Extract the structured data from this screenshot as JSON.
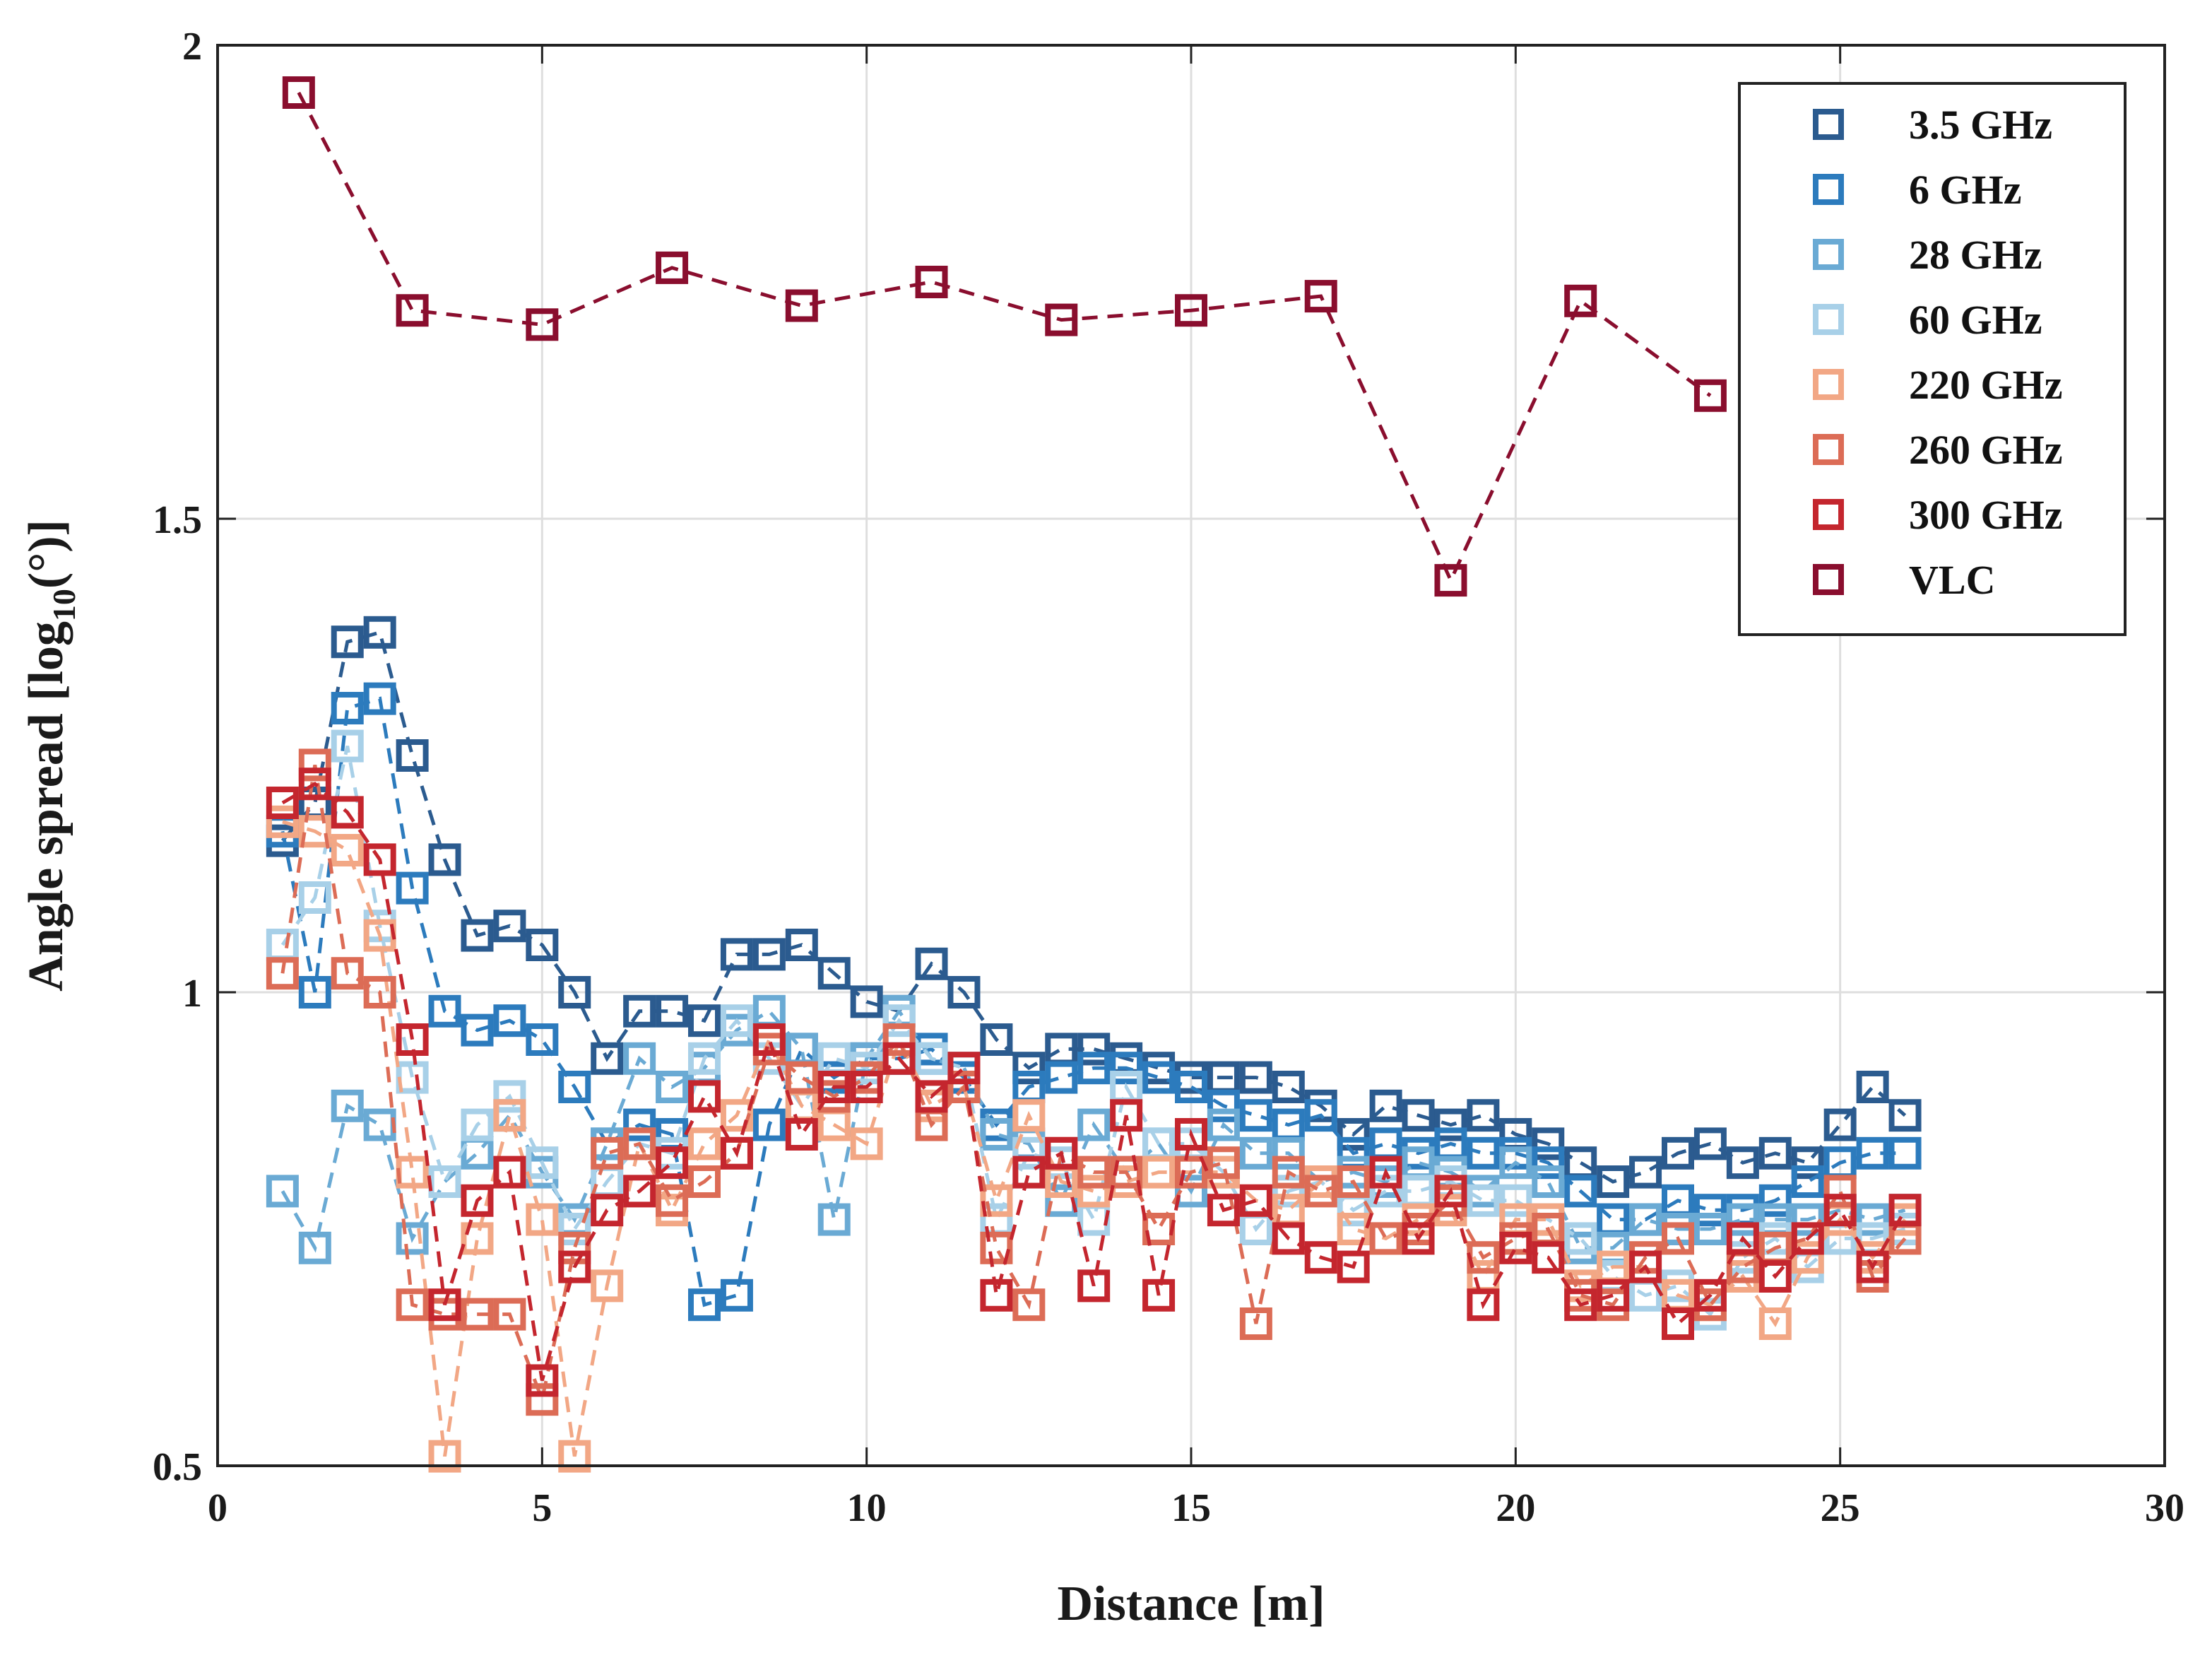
{
  "chart_data": {
    "type": "line",
    "title": "",
    "xlabel": "Distance [m]",
    "ylabel_main": "Angle spread [log",
    "ylabel_sub": "10",
    "ylabel_tail": "(°)]",
    "xlim": [
      0,
      30
    ],
    "ylim": [
      0.5,
      2
    ],
    "xticks": [
      0,
      5,
      10,
      15,
      20,
      25,
      30
    ],
    "xtick_labels": [
      "0",
      "5",
      "10",
      "15",
      "20",
      "25",
      "30"
    ],
    "yticks": [
      0.5,
      1,
      1.5,
      2
    ],
    "ytick_labels": [
      "0.5",
      "1",
      "1.5",
      "2"
    ],
    "grid": true,
    "legend_position": "top-right",
    "marker": "square",
    "line_style": "dashed",
    "series": [
      {
        "name": "3.5 GHz",
        "color": "#2b5b8f",
        "x": [
          1,
          1.5,
          2,
          2.5,
          3,
          3.5,
          4,
          4.5,
          5,
          5.5,
          6,
          6.5,
          7,
          7.5,
          8,
          8.5,
          9,
          9.5,
          10,
          10.5,
          11,
          11.5,
          12,
          12.5,
          13,
          13.5,
          14,
          14.5,
          15,
          15.5,
          16,
          16.5,
          17,
          17.5,
          18,
          18.5,
          19,
          19.5,
          20,
          20.5,
          21,
          21.5,
          22,
          22.5,
          23,
          23.5,
          24,
          24.5,
          25,
          25.5,
          26
        ],
        "y": [
          1.16,
          1.2,
          1.37,
          1.38,
          1.25,
          1.14,
          1.06,
          1.07,
          1.05,
          1.0,
          0.93,
          0.98,
          0.98,
          0.97,
          1.04,
          1.04,
          1.05,
          1.02,
          0.99,
          0.98,
          1.03,
          1.0,
          0.95,
          0.92,
          0.94,
          0.94,
          0.93,
          0.92,
          0.91,
          0.91,
          0.91,
          0.9,
          0.88,
          0.85,
          0.88,
          0.87,
          0.86,
          0.87,
          0.85,
          0.84,
          0.82,
          0.8,
          0.81,
          0.83,
          0.84,
          0.82,
          0.83,
          0.82,
          0.86,
          0.9,
          0.87
        ]
      },
      {
        "name": "6 GHz",
        "color": "#2c7bbd",
        "x": [
          1,
          1.5,
          2,
          2.5,
          3,
          3.5,
          4,
          4.5,
          5,
          5.5,
          6,
          6.5,
          7,
          7.5,
          8,
          8.5,
          9,
          9.5,
          10,
          10.5,
          11,
          11.5,
          12,
          12.5,
          13,
          13.5,
          14,
          14.5,
          15,
          15.5,
          16,
          16.5,
          17,
          17.5,
          18,
          18.5,
          19,
          19.5,
          20,
          20.5,
          21,
          21.5,
          22,
          22.5,
          23,
          23.5,
          24,
          24.5,
          25,
          25.5,
          26
        ],
        "y": [
          1.17,
          1.0,
          1.3,
          1.31,
          1.11,
          0.98,
          0.96,
          0.97,
          0.95,
          0.9,
          0.84,
          0.86,
          0.85,
          0.67,
          0.68,
          0.86,
          0.94,
          0.91,
          0.93,
          0.93,
          0.94,
          0.91,
          0.86,
          0.9,
          0.91,
          0.92,
          0.92,
          0.91,
          0.9,
          0.88,
          0.87,
          0.86,
          0.87,
          0.83,
          0.84,
          0.83,
          0.84,
          0.83,
          0.83,
          0.82,
          0.79,
          0.76,
          0.76,
          0.78,
          0.77,
          0.77,
          0.78,
          0.8,
          0.82,
          0.83,
          0.83
        ]
      },
      {
        "name": "28 GHz",
        "color": "#6aaad4",
        "x": [
          1,
          1.5,
          2,
          2.5,
          3,
          3.5,
          4,
          4.5,
          5,
          5.5,
          6,
          6.5,
          7,
          7.5,
          8,
          8.5,
          9,
          9.5,
          10,
          10.5,
          11,
          11.5,
          12,
          12.5,
          13,
          13.5,
          14,
          14.5,
          15,
          15.5,
          16,
          16.5,
          17,
          17.5,
          18,
          18.5,
          19,
          19.5,
          20,
          20.5,
          21,
          21.5,
          22,
          22.5,
          23,
          23.5,
          24,
          24.5,
          25,
          25.5,
          26
        ],
        "y": [
          0.79,
          0.73,
          0.88,
          0.86,
          0.74,
          0.8,
          0.83,
          0.87,
          0.81,
          0.76,
          0.84,
          0.93,
          0.9,
          0.92,
          0.96,
          0.98,
          0.94,
          0.76,
          0.93,
          0.98,
          0.93,
          0.92,
          0.85,
          0.84,
          0.78,
          0.86,
          0.81,
          0.84,
          0.79,
          0.86,
          0.83,
          0.83,
          0.8,
          0.81,
          0.8,
          0.82,
          0.81,
          0.79,
          0.82,
          0.8,
          0.73,
          0.73,
          0.76,
          0.75,
          0.75,
          0.76,
          0.76,
          0.76,
          0.77,
          0.76,
          0.77
        ]
      },
      {
        "name": "60 GHz",
        "color": "#a8d0e8",
        "x": [
          1,
          1.5,
          2,
          2.5,
          3,
          3.5,
          4,
          4.5,
          5,
          5.5,
          6,
          6.5,
          7,
          7.5,
          8,
          8.5,
          9,
          9.5,
          10,
          10.5,
          11,
          11.5,
          12,
          12.5,
          13,
          13.5,
          14,
          14.5,
          15,
          15.5,
          16,
          16.5,
          17,
          17.5,
          18,
          18.5,
          19,
          19.5,
          20,
          20.5,
          21,
          21.5,
          22,
          22.5,
          23,
          23.5,
          24,
          24.5,
          25,
          25.5,
          26
        ],
        "y": [
          1.05,
          1.1,
          1.26,
          1.07,
          0.91,
          0.8,
          0.86,
          0.89,
          0.82,
          0.75,
          0.8,
          0.84,
          0.83,
          0.93,
          0.97,
          0.93,
          0.88,
          0.93,
          0.92,
          0.97,
          0.93,
          0.92,
          0.76,
          0.83,
          0.82,
          0.76,
          0.9,
          0.84,
          0.84,
          0.81,
          0.75,
          0.79,
          0.8,
          0.77,
          0.79,
          0.79,
          0.8,
          0.78,
          0.78,
          0.76,
          0.74,
          0.7,
          0.68,
          0.69,
          0.66,
          0.72,
          0.74,
          0.71,
          0.74,
          0.74,
          0.75
        ]
      },
      {
        "name": "220 GHz",
        "color": "#f2a785",
        "x": [
          1,
          1.5,
          2,
          2.5,
          3,
          3.5,
          4,
          4.5,
          5,
          5.5,
          6,
          6.5,
          7,
          7.5,
          8,
          8.5,
          9,
          9.5,
          10,
          10.5,
          11,
          11.5,
          12,
          12.5,
          13,
          13.5,
          14,
          14.5,
          15,
          15.5,
          16,
          16.5,
          17,
          17.5,
          18,
          18.5,
          19,
          19.5,
          20,
          20.5,
          21,
          21.5,
          22,
          22.5,
          23,
          23.5,
          24,
          24.5,
          25,
          25.5,
          26
        ],
        "y": [
          1.18,
          1.17,
          1.15,
          1.06,
          0.81,
          0.51,
          0.74,
          0.87,
          0.76,
          0.51,
          0.69,
          0.84,
          0.77,
          0.84,
          0.87,
          0.95,
          0.88,
          0.86,
          0.84,
          0.95,
          0.88,
          0.9,
          0.78,
          0.87,
          0.8,
          0.79,
          0.8,
          0.81,
          0.81,
          0.81,
          0.78,
          0.77,
          0.8,
          0.75,
          0.74,
          0.76,
          0.77,
          0.7,
          0.76,
          0.76,
          0.69,
          0.71,
          0.71,
          0.68,
          0.67,
          0.7,
          0.65,
          0.72,
          0.76,
          0.72,
          0.76
        ]
      },
      {
        "name": "260 GHz",
        "color": "#dc6c56",
        "x": [
          1,
          1.5,
          2,
          2.5,
          3,
          3.5,
          4,
          4.5,
          5,
          5.5,
          6,
          6.5,
          7,
          7.5,
          8,
          8.5,
          9,
          9.5,
          10,
          10.5,
          11,
          11.5,
          12,
          12.5,
          13,
          13.5,
          14,
          14.5,
          15,
          15.5,
          16,
          16.5,
          17,
          17.5,
          18,
          18.5,
          19,
          19.5,
          20,
          20.5,
          21,
          21.5,
          22,
          22.5,
          23,
          23.5,
          24,
          24.5,
          25,
          25.5,
          26
        ],
        "y": [
          1.02,
          1.24,
          1.02,
          1.0,
          0.67,
          0.66,
          0.66,
          0.66,
          0.57,
          0.73,
          0.83,
          0.84,
          0.78,
          0.8,
          0.83,
          0.94,
          0.91,
          0.89,
          0.91,
          0.95,
          0.86,
          0.9,
          0.73,
          0.67,
          0.83,
          0.81,
          0.81,
          0.75,
          0.81,
          0.82,
          0.65,
          0.81,
          0.79,
          0.8,
          0.74,
          0.75,
          0.78,
          0.72,
          0.74,
          0.75,
          0.68,
          0.67,
          0.72,
          0.74,
          0.67,
          0.71,
          0.73,
          0.74,
          0.79,
          0.7,
          0.74
        ]
      },
      {
        "name": "300 GHz",
        "color": "#c4262e",
        "x": [
          1,
          1.5,
          2,
          2.5,
          3,
          3.5,
          4,
          4.5,
          5,
          5.5,
          6,
          6.5,
          7,
          7.5,
          8,
          8.5,
          9,
          9.5,
          10,
          10.5,
          11,
          11.5,
          12,
          12.5,
          13,
          13.5,
          14,
          14.5,
          15,
          15.5,
          16,
          16.5,
          17,
          17.5,
          18,
          18.5,
          19,
          19.5,
          20,
          20.5,
          21,
          21.5,
          22,
          22.5,
          23,
          23.5,
          24,
          24.5,
          25,
          25.5,
          26
        ],
        "y": [
          1.2,
          1.22,
          1.19,
          1.14,
          0.95,
          0.67,
          0.78,
          0.81,
          0.59,
          0.71,
          0.77,
          0.79,
          0.82,
          0.89,
          0.83,
          0.95,
          0.85,
          0.9,
          0.9,
          0.93,
          0.89,
          0.92,
          0.68,
          0.81,
          0.83,
          0.69,
          0.87,
          0.68,
          0.85,
          0.77,
          0.78,
          0.74,
          0.72,
          0.71,
          0.81,
          0.74,
          0.79,
          0.67,
          0.73,
          0.72,
          0.67,
          0.68,
          0.71,
          0.65,
          0.68,
          0.74,
          0.7,
          0.74,
          0.77,
          0.71,
          0.77
        ]
      },
      {
        "name": "VLC",
        "color": "#8a0e2e",
        "x": [
          1.25,
          3,
          5,
          7,
          9,
          11,
          13,
          15,
          17,
          19,
          21,
          23
        ],
        "y": [
          1.95,
          1.72,
          1.705,
          1.765,
          1.725,
          1.75,
          1.71,
          1.72,
          1.735,
          1.435,
          1.73,
          1.63
        ]
      }
    ]
  }
}
